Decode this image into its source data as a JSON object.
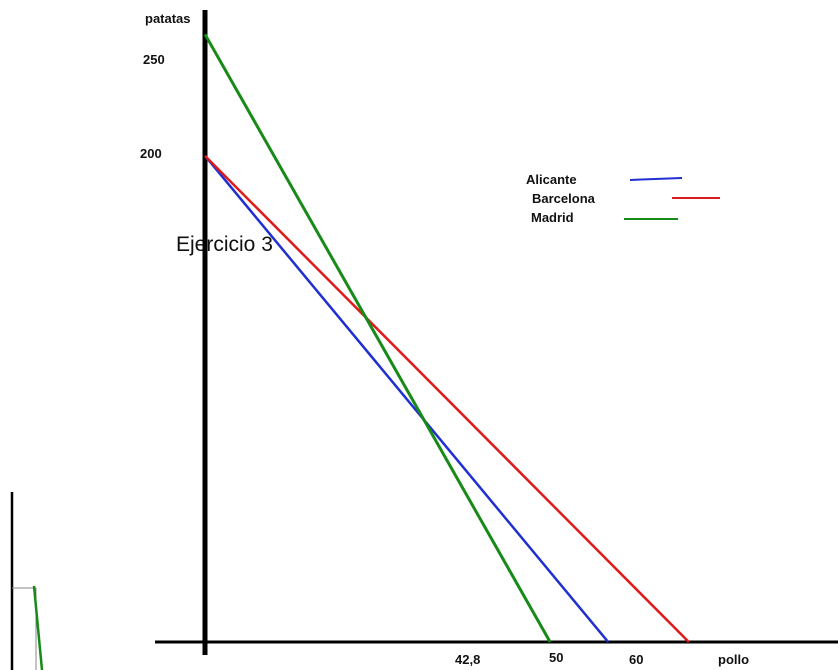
{
  "page_title": "Ejercicio 3",
  "chart_data": {
    "type": "line",
    "title": "",
    "xlabel": "pollo",
    "ylabel": "patatas",
    "xlim": [
      0,
      78.5
    ],
    "ylim": [
      0,
      260
    ],
    "x_ticks": [
      {
        "value": 42.8,
        "label": "42,8"
      },
      {
        "value": 50,
        "label": "50"
      },
      {
        "value": 60,
        "label": "60"
      }
    ],
    "y_ticks": [
      {
        "value": 200,
        "label": "200"
      },
      {
        "value": 250,
        "label": "250"
      }
    ],
    "legend_position": "top-right",
    "series": [
      {
        "name": "Alicante",
        "color": "#1f2fd0",
        "points": [
          [
            0,
            200
          ],
          [
            50,
            0
          ]
        ]
      },
      {
        "name": "Barcelona",
        "color": "#e01a1a",
        "points": [
          [
            0,
            200
          ],
          [
            60,
            0
          ]
        ]
      },
      {
        "name": "Madrid",
        "color": "#178a17",
        "points": [
          [
            0,
            250
          ],
          [
            42.8,
            0
          ]
        ]
      }
    ],
    "grid": false
  }
}
